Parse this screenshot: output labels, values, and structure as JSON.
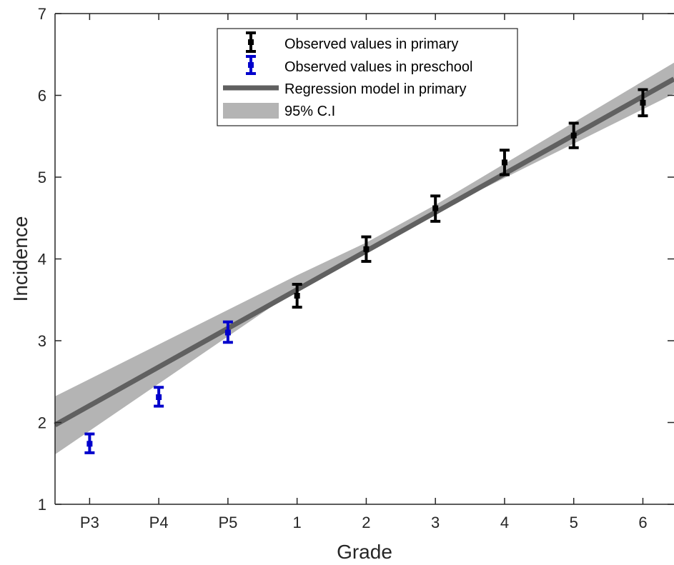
{
  "chart_data": {
    "type": "scatter",
    "xlabel": "Grade",
    "ylabel": "Incidence",
    "categories": [
      "P3",
      "P4",
      "P5",
      "1",
      "2",
      "3",
      "4",
      "5",
      "6"
    ],
    "x_positions": [
      -2,
      -1,
      0,
      1,
      2,
      3,
      4,
      5,
      6
    ],
    "xlim": [
      -2.5,
      6.45
    ],
    "ylim": [
      1,
      7
    ],
    "yticks": [
      "1",
      "2",
      "3",
      "4",
      "5",
      "6",
      "7"
    ],
    "grid": false,
    "legend_position": "top-center",
    "series": [
      {
        "name": "Observed values in primary",
        "kind": "errorbar",
        "color": "#000000",
        "x": [
          1,
          2,
          3,
          4,
          5,
          6
        ],
        "y": [
          3.55,
          4.12,
          4.62,
          5.18,
          5.51,
          5.91
        ],
        "lower": [
          3.41,
          3.97,
          4.46,
          5.03,
          5.36,
          5.75
        ],
        "upper": [
          3.69,
          4.27,
          4.77,
          5.33,
          5.66,
          6.07
        ]
      },
      {
        "name": "Observed values in preschool",
        "kind": "errorbar",
        "color": "#0000cc",
        "x": [
          -2,
          -1,
          0
        ],
        "y": [
          1.74,
          2.31,
          3.1
        ],
        "lower": [
          1.63,
          2.2,
          2.98
        ],
        "upper": [
          1.86,
          2.43,
          3.23
        ]
      },
      {
        "name": "Regression model in primary",
        "kind": "line",
        "color": "#606060",
        "x": [
          -2.5,
          6.45
        ],
        "y": [
          1.97,
          6.2
        ]
      },
      {
        "name": "95% C.I",
        "kind": "band",
        "color": "#b4b4b4",
        "x": [
          -2.5,
          1.0,
          2.0,
          3.0,
          6.45
        ],
        "lower": [
          1.61,
          3.63,
          4.1,
          4.57,
          6.02
        ],
        "upper": [
          2.32,
          3.8,
          4.2,
          4.66,
          6.4
        ]
      }
    ]
  }
}
